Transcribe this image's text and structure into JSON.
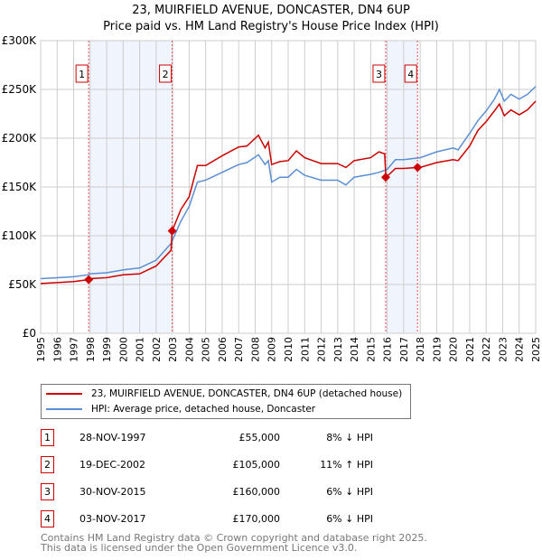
{
  "chart_data": {
    "type": "line",
    "title": "23, MUIRFIELD AVENUE, DONCASTER, DN4 6UP",
    "subtitle": "Price paid vs. HM Land Registry's House Price Index (HPI)",
    "xlim": [
      1995,
      2025
    ],
    "ylim": [
      0,
      300000
    ],
    "x_ticks": [
      "1995",
      "1996",
      "1997",
      "1998",
      "1999",
      "2000",
      "2001",
      "2002",
      "2003",
      "2004",
      "2005",
      "2006",
      "2007",
      "2008",
      "2009",
      "2010",
      "2011",
      "2012",
      "2013",
      "2014",
      "2015",
      "2016",
      "2017",
      "2018",
      "2019",
      "2020",
      "2021",
      "2022",
      "2023",
      "2024",
      "2025"
    ],
    "y_ticks": [
      {
        "v": 0,
        "label": "£0"
      },
      {
        "v": 50000,
        "label": "£50K"
      },
      {
        "v": 100000,
        "label": "£100K"
      },
      {
        "v": 150000,
        "label": "£150K"
      },
      {
        "v": 200000,
        "label": "£200K"
      },
      {
        "v": 250000,
        "label": "£250K"
      },
      {
        "v": 300000,
        "label": "£300K"
      }
    ],
    "grid": true,
    "series": [
      {
        "name": "23, MUIRFIELD AVENUE, DONCASTER, DN4 6UP (detached house)",
        "color": "#cc0000",
        "x": [
          1995,
          1996,
          1997,
          1997.9,
          1998,
          1999,
          2000,
          2001,
          2002,
          2002.9,
          2002.97,
          2003.5,
          2004,
          2004.5,
          2005,
          2006,
          2007,
          2007.5,
          2008.2,
          2008.6,
          2008.8,
          2009,
          2009.5,
          2010,
          2010.5,
          2011,
          2012,
          2013,
          2013.5,
          2014,
          2015,
          2015.5,
          2015.85,
          2015.92,
          2016,
          2016.5,
          2017,
          2017.84,
          2018,
          2019,
          2020,
          2020.3,
          2021,
          2021.5,
          2022,
          2022.5,
          2022.8,
          2023.1,
          2023.5,
          2024,
          2024.5,
          2025
        ],
        "y": [
          51000,
          52000,
          53000,
          55000,
          56000,
          57000,
          60000,
          61000,
          69000,
          85000,
          105000,
          127000,
          140000,
          172000,
          172000,
          182000,
          191000,
          192000,
          203000,
          190000,
          196000,
          173000,
          176000,
          177000,
          187000,
          180000,
          174000,
          174000,
          170000,
          177000,
          180000,
          186000,
          184000,
          160000,
          161000,
          169000,
          169000,
          170000,
          170000,
          175000,
          178000,
          177000,
          192000,
          208000,
          217000,
          228000,
          235000,
          223000,
          229000,
          224000,
          229000,
          238000
        ]
      },
      {
        "name": "HPI: Average price, detached house, Doncaster",
        "color": "#5b8fd4",
        "x": [
          1995,
          1996,
          1997,
          1997.9,
          1998,
          1999,
          2000,
          2001,
          2002,
          2002.9,
          2003.5,
          2004,
          2004.5,
          2005,
          2006,
          2007,
          2007.5,
          2008.2,
          2008.6,
          2008.8,
          2009,
          2009.5,
          2010,
          2010.5,
          2011,
          2012,
          2013,
          2013.5,
          2014,
          2015,
          2015.5,
          2016,
          2016.5,
          2017,
          2018,
          2019,
          2020,
          2020.3,
          2021,
          2021.5,
          2022,
          2022.5,
          2022.8,
          2023.1,
          2023.5,
          2024,
          2024.5,
          2025
        ],
        "y": [
          56000,
          57000,
          58000,
          60000,
          61000,
          62000,
          65000,
          67000,
          75000,
          92000,
          115000,
          130000,
          155000,
          157000,
          165000,
          173000,
          175000,
          183000,
          173000,
          177000,
          155000,
          160000,
          160000,
          168000,
          162000,
          157000,
          157000,
          152000,
          160000,
          163000,
          165000,
          168000,
          178000,
          178000,
          180000,
          186000,
          190000,
          188000,
          205000,
          218000,
          228000,
          240000,
          250000,
          238000,
          245000,
          240000,
          245000,
          253000
        ]
      }
    ],
    "sales": [
      {
        "n": "1",
        "x": 1997.91,
        "y": 55000,
        "date": "28-NOV-1997",
        "price": "£55,000",
        "hpi": "8% ↓ HPI"
      },
      {
        "n": "2",
        "x": 2002.97,
        "y": 105000,
        "date": "19-DEC-2002",
        "price": "£105,000",
        "hpi": "11% ↑ HPI"
      },
      {
        "n": "3",
        "x": 2015.91,
        "y": 160000,
        "date": "30-NOV-2015",
        "price": "£160,000",
        "hpi": "6% ↓ HPI"
      },
      {
        "n": "4",
        "x": 2017.84,
        "y": 170000,
        "date": "03-NOV-2017",
        "price": "£170,000",
        "hpi": "6% ↓ HPI"
      }
    ],
    "shaded": [
      [
        1997.91,
        2002.97
      ],
      [
        2015.91,
        2017.84
      ]
    ]
  },
  "legend": {
    "red": "23, MUIRFIELD AVENUE, DONCASTER, DN4 6UP (detached house)",
    "blue": "HPI: Average price, detached house, Doncaster"
  },
  "footer": {
    "line1": "Contains HM Land Registry data © Crown copyright and database right 2025.",
    "line2": "This data is licensed under the Open Government Licence v3.0."
  }
}
